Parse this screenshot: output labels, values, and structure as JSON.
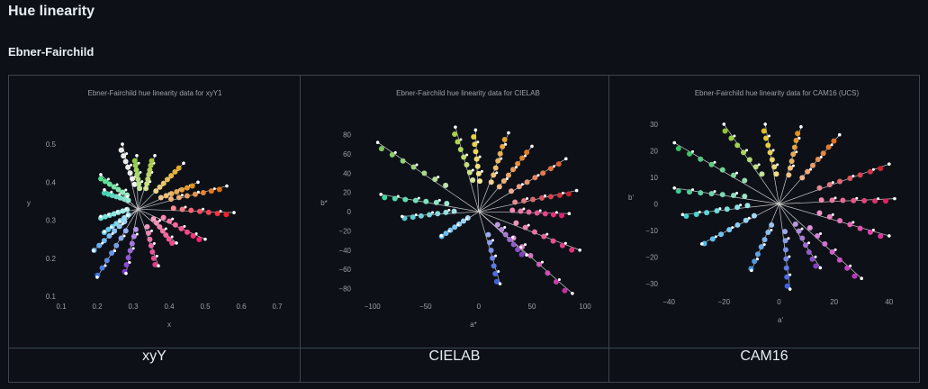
{
  "page": {
    "heading": "Hue linearity",
    "subheading": "Ebner-Fairchild"
  },
  "plots": [
    {
      "caption": "xyY",
      "chart_data": {
        "type": "scatter",
        "title": "Ebner-Fairchild hue linearity data for xyY1",
        "xlabel": "x",
        "ylabel": "y",
        "xlim": [
          0.1,
          0.7
        ],
        "ylim": [
          0.1,
          0.55
        ],
        "xticks": [
          0.1,
          0.2,
          0.3,
          0.4,
          0.5,
          0.6,
          0.7
        ],
        "yticks": [
          0.1,
          0.2,
          0.3,
          0.4,
          0.5
        ],
        "xtick_labels": [
          "0.1",
          "0.2",
          "0.3",
          "0.4",
          "0.5",
          "0.6",
          "0.7"
        ],
        "ytick_labels": [
          "0.1",
          "0.2",
          "0.3",
          "0.4",
          "0.5"
        ],
        "center": [
          0.313,
          0.329
        ],
        "grid": false,
        "series": [
          {
            "end": [
              0.27,
              0.5
            ],
            "color": "#e8e8e8"
          },
          {
            "end": [
              0.21,
              0.42
            ],
            "color": "#4ddc8c"
          },
          {
            "end": [
              0.22,
              0.38
            ],
            "color": "#40d0b0"
          },
          {
            "end": [
              0.31,
              0.47
            ],
            "color": "#8fce3c"
          },
          {
            "end": [
              0.36,
              0.47
            ],
            "color": "#a8c83a"
          },
          {
            "end": [
              0.44,
              0.45
            ],
            "color": "#e0aa2a"
          },
          {
            "end": [
              0.48,
              0.4
            ],
            "color": "#e09020"
          },
          {
            "end": [
              0.56,
              0.39
            ],
            "color": "#e07010"
          },
          {
            "end": [
              0.58,
              0.32
            ],
            "color": "#ff1f2f"
          },
          {
            "end": [
              0.5,
              0.25
            ],
            "color": "#ff2070"
          },
          {
            "end": [
              0.42,
              0.24
            ],
            "color": "#f04a8a"
          },
          {
            "end": [
              0.37,
              0.18
            ],
            "color": "#e03888"
          },
          {
            "end": [
              0.28,
              0.16
            ],
            "color": "#8038d0"
          },
          {
            "end": [
              0.2,
              0.15
            ],
            "color": "#3c70e0"
          },
          {
            "end": [
              0.19,
              0.22
            ],
            "color": "#5aa8f0"
          },
          {
            "end": [
              0.22,
              0.27
            ],
            "color": "#58c8e8"
          },
          {
            "end": [
              0.21,
              0.31
            ],
            "color": "#6ae0d8"
          }
        ]
      }
    },
    {
      "caption": "CIELAB",
      "chart_data": {
        "type": "scatter",
        "title": "Ebner-Fairchild hue linearity data for CIELAB",
        "xlabel": "a*",
        "ylabel": "b*",
        "xlim": [
          -115,
          105
        ],
        "ylim": [
          -88,
          90
        ],
        "xticks": [
          -100,
          -50,
          0,
          50,
          100
        ],
        "yticks": [
          -80,
          -60,
          -40,
          -20,
          0,
          20,
          40,
          60,
          80
        ],
        "xtick_labels": [
          "−100",
          "−50",
          "0",
          "50",
          "100"
        ],
        "ytick_labels": [
          "−80",
          "−60",
          "−40",
          "−20",
          "0",
          "20",
          "40",
          "60",
          "80"
        ],
        "center": [
          0,
          0
        ],
        "grid": false,
        "series": [
          {
            "end": [
              -95,
              72
            ],
            "color": "#7ec85a"
          },
          {
            "end": [
              -22,
              88
            ],
            "color": "#a8d040"
          },
          {
            "end": [
              -3,
              85
            ],
            "color": "#e8d040"
          },
          {
            "end": [
              28,
              82
            ],
            "color": "#e8a030"
          },
          {
            "end": [
              50,
              68
            ],
            "color": "#e07a20"
          },
          {
            "end": [
              82,
              55
            ],
            "color": "#e06030"
          },
          {
            "end": [
              92,
              22
            ],
            "color": "#d02030"
          },
          {
            "end": [
              85,
              -2
            ],
            "color": "#e02070"
          },
          {
            "end": [
              95,
              -40
            ],
            "color": "#e0307a"
          },
          {
            "end": [
              88,
              -85
            ],
            "color": "#c030a0"
          },
          {
            "end": [
              45,
              -45
            ],
            "color": "#8040c0"
          },
          {
            "end": [
              20,
              -75
            ],
            "color": "#4060e0"
          },
          {
            "end": [
              -35,
              -25
            ],
            "color": "#58b8f0"
          },
          {
            "end": [
              -72,
              -5
            ],
            "color": "#50c8d0"
          },
          {
            "end": [
              -92,
              18
            ],
            "color": "#40d8a0"
          }
        ]
      }
    },
    {
      "caption": "CAM16",
      "chart_data": {
        "type": "scatter",
        "title": "Ebner-Fairchild hue linearity data for CAM16 (UCS)",
        "xlabel": "a'",
        "ylabel": "b'",
        "xlim": [
          -42,
          43
        ],
        "ylim": [
          -33,
          32
        ],
        "xticks": [
          -40,
          -20,
          0,
          20,
          40
        ],
        "yticks": [
          -30,
          -20,
          -10,
          0,
          10,
          20,
          30
        ],
        "xtick_labels": [
          "−40",
          "−20",
          "0",
          "20",
          "40"
        ],
        "ytick_labels": [
          "−30",
          "−20",
          "−10",
          "0",
          "10",
          "20",
          "30"
        ],
        "center": [
          0,
          0
        ],
        "grid": false,
        "series": [
          {
            "end": [
              -38,
              23
            ],
            "color": "#30c060"
          },
          {
            "end": [
              -20,
              30
            ],
            "color": "#90c830"
          },
          {
            "end": [
              -5,
              30
            ],
            "color": "#e0c020"
          },
          {
            "end": [
              8,
              29
            ],
            "color": "#e09020"
          },
          {
            "end": [
              22,
              26
            ],
            "color": "#e07020"
          },
          {
            "end": [
              40,
              15
            ],
            "color": "#d02030"
          },
          {
            "end": [
              42,
              2
            ],
            "color": "#e02060"
          },
          {
            "end": [
              40,
              -12
            ],
            "color": "#e030a0"
          },
          {
            "end": [
              30,
              -28
            ],
            "color": "#c030c0"
          },
          {
            "end": [
              15,
              -24
            ],
            "color": "#8040c0"
          },
          {
            "end": [
              4,
              -32
            ],
            "color": "#4060e0"
          },
          {
            "end": [
              -10,
              -25
            ],
            "color": "#4090e0"
          },
          {
            "end": [
              -28,
              -15
            ],
            "color": "#50b8f0"
          },
          {
            "end": [
              -35,
              -4
            ],
            "color": "#40d0d0"
          },
          {
            "end": [
              -38,
              6
            ],
            "color": "#40c890"
          }
        ]
      }
    }
  ]
}
